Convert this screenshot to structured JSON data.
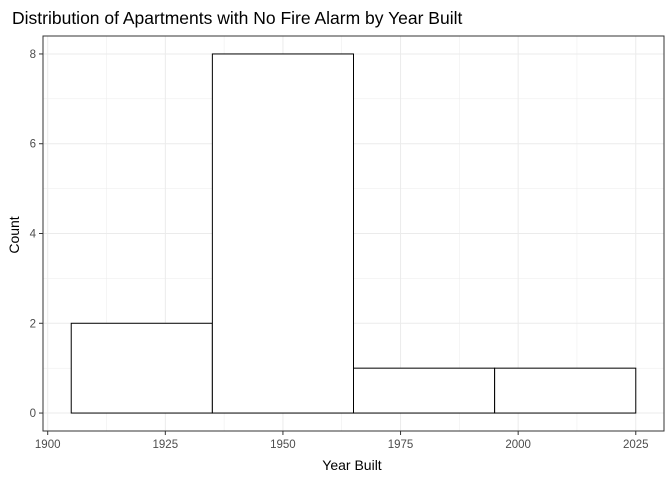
{
  "chart_data": {
    "type": "bar",
    "title": "Distribution of Apartments with No Fire Alarm by Year Built",
    "xlabel": "Year Built",
    "ylabel": "Count",
    "bins": [
      {
        "start": 1905,
        "end": 1935,
        "count": 2
      },
      {
        "start": 1935,
        "end": 1965,
        "count": 8
      },
      {
        "start": 1965,
        "end": 1995,
        "count": 1
      },
      {
        "start": 1995,
        "end": 2025,
        "count": 1
      }
    ],
    "xticks": [
      1900,
      1925,
      1950,
      1975,
      2000,
      2025
    ],
    "yticks": [
      0,
      2,
      4,
      6,
      8
    ],
    "xlim": [
      1899,
      2031
    ],
    "ylim": [
      -0.4,
      8.4
    ],
    "grid": true,
    "bar_fill": "#ffffff",
    "bar_edge": "#000000",
    "grid_color": "#ebebeb",
    "frame_color": "#333333"
  }
}
